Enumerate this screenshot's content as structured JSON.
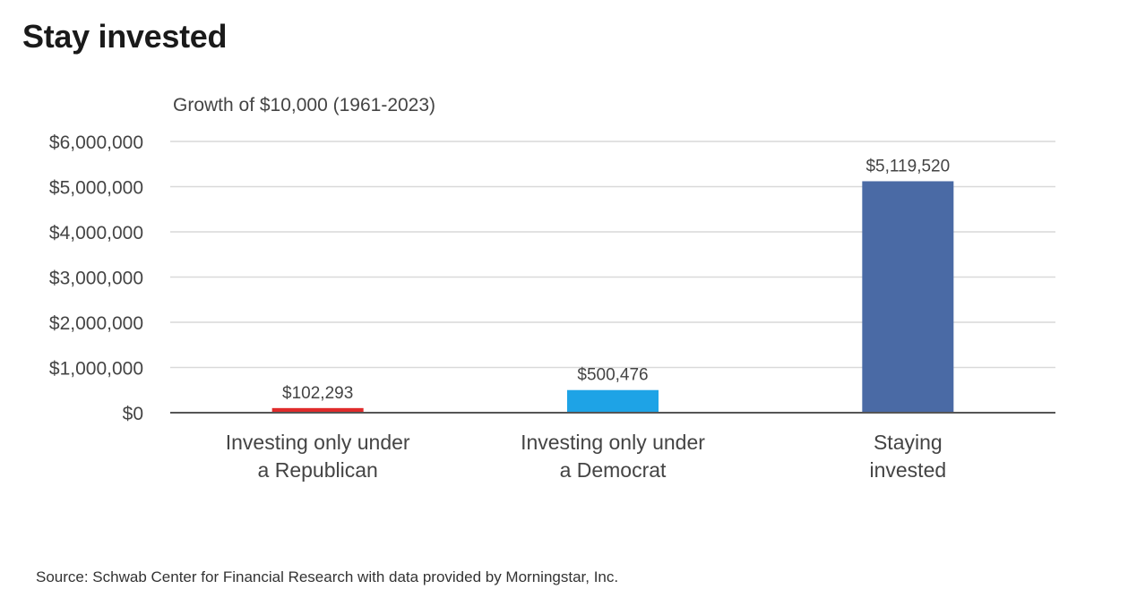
{
  "page": {
    "title": "Stay invested",
    "source": "Source: Schwab Center for Financial Research with data provided by Morningstar, Inc."
  },
  "chart_data": {
    "type": "bar",
    "title": "Growth of $10,000 (1961-2023)",
    "xlabel": "",
    "ylabel": "",
    "ylim": [
      0,
      6000000
    ],
    "yticks": [
      0,
      1000000,
      2000000,
      3000000,
      4000000,
      5000000,
      6000000
    ],
    "ytick_labels": [
      "$0",
      "$1,000,000",
      "$2,000,000",
      "$3,000,000",
      "$4,000,000",
      "$5,000,000",
      "$6,000,000"
    ],
    "grid": true,
    "categories": [
      [
        "Investing only under",
        "a Republican"
      ],
      [
        "Investing only under",
        "a Democrat"
      ],
      [
        "Staying",
        "invested"
      ]
    ],
    "values": [
      102293,
      500476,
      5119520
    ],
    "value_labels": [
      "$102,293",
      "$500,476",
      "$5,119,520"
    ],
    "colors": [
      "#e02b2b",
      "#1ea3e6",
      "#4a6aa5"
    ]
  }
}
